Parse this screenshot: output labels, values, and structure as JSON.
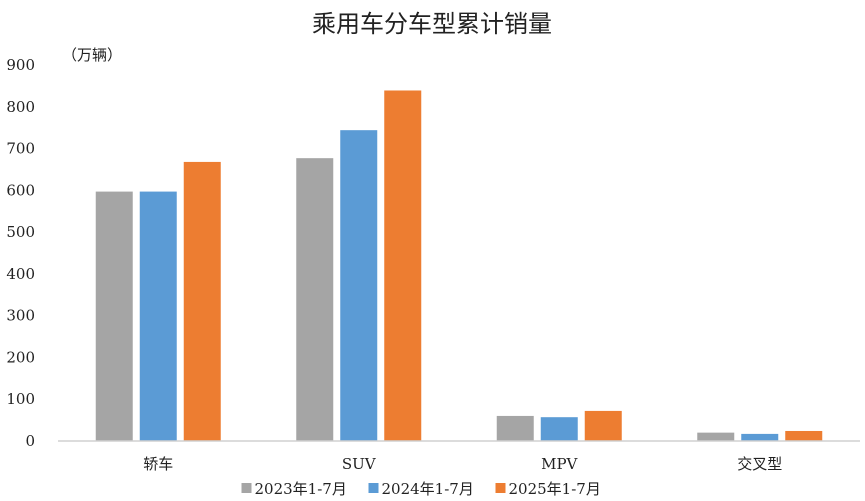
{
  "chart_data": {
    "type": "bar",
    "title": "乘用车分车型累计销量",
    "unit_label": "（万辆）",
    "categories": [
      "轿车",
      "SUV",
      "MPV",
      "交叉型"
    ],
    "series": [
      {
        "name": "2023年1-7月",
        "color": "#a5a5a5",
        "values": [
          597,
          677,
          60,
          20
        ]
      },
      {
        "name": "2024年1-7月",
        "color": "#5b9bd5",
        "values": [
          597,
          744,
          57,
          17
        ]
      },
      {
        "name": "2025年1-7月",
        "color": "#ed7d31",
        "values": [
          668,
          839,
          72,
          24
        ]
      }
    ],
    "ylim": [
      0,
      900
    ],
    "yticks": [
      "0",
      "100",
      "200",
      "300",
      "400",
      "500",
      "600",
      "700",
      "800",
      "900"
    ],
    "grid": false,
    "legend_position": "bottom"
  }
}
